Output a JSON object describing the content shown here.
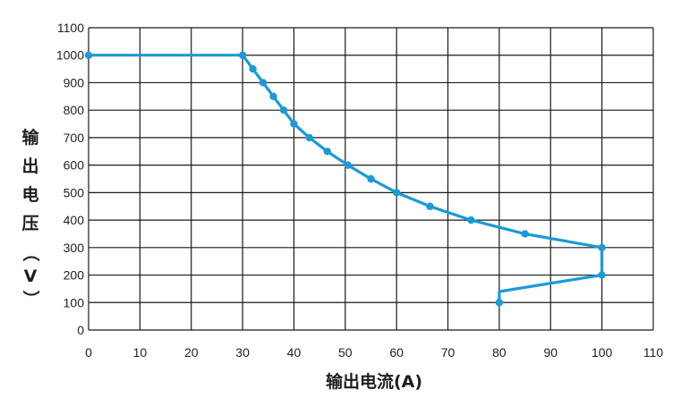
{
  "chart_data": {
    "type": "line",
    "xlabel": "输出电流(A)",
    "ylabel_chars": [
      "输",
      "出",
      "电",
      "压",
      "（",
      "V",
      "）"
    ],
    "xlim": [
      0,
      110
    ],
    "ylim": [
      0,
      1100
    ],
    "x_ticks": [
      "0",
      "10",
      "20",
      "30",
      "40",
      "50",
      "60",
      "70",
      "80",
      "90",
      "100",
      "110"
    ],
    "y_ticks": [
      "0",
      "100",
      "200",
      "300",
      "400",
      "500",
      "600",
      "700",
      "800",
      "900",
      "1000",
      "1100"
    ],
    "grid": true,
    "line_color": "#1a9ad8",
    "series": [
      {
        "points": [
          [
            0,
            1000
          ],
          [
            30,
            1000
          ],
          [
            32,
            950
          ],
          [
            34,
            900
          ],
          [
            36,
            850
          ],
          [
            38,
            800
          ],
          [
            40,
            750
          ],
          [
            43,
            700
          ],
          [
            46.5,
            650
          ],
          [
            50.5,
            600
          ],
          [
            55,
            550
          ],
          [
            60,
            500
          ],
          [
            66.5,
            450
          ],
          [
            74.5,
            400
          ],
          [
            85,
            350
          ],
          [
            100,
            300
          ],
          [
            100,
            200
          ],
          [
            80,
            140
          ],
          [
            80,
            100
          ]
        ],
        "markers": [
          [
            0,
            1000
          ],
          [
            30,
            1000
          ],
          [
            32,
            950
          ],
          [
            34,
            900
          ],
          [
            36,
            850
          ],
          [
            38,
            800
          ],
          [
            40,
            750
          ],
          [
            43,
            700
          ],
          [
            46.5,
            650
          ],
          [
            50.5,
            600
          ],
          [
            55,
            550
          ],
          [
            60,
            500
          ],
          [
            66.5,
            450
          ],
          [
            74.5,
            400
          ],
          [
            85,
            350
          ],
          [
            100,
            300
          ],
          [
            100,
            200
          ],
          [
            80,
            100
          ]
        ]
      }
    ]
  }
}
